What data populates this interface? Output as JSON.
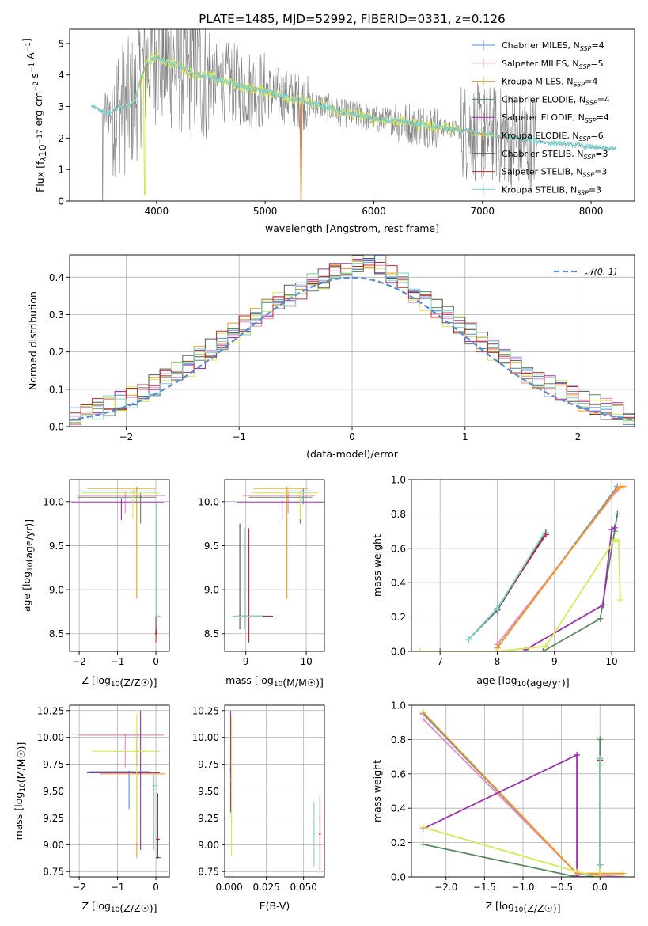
{
  "colors": {
    "Chabrier MILES": "#5B8BD4",
    "Salpeter MILES": "#E88AC0",
    "Kroupa MILES": "#F39C12",
    "Chabrier ELODIE": "#5A8A60",
    "Salpeter ELODIE": "#9B30B0",
    "Kroupa ELODIE": "#D4EA50",
    "Chabrier STELIB": "#555555",
    "Salpeter STELIB": "#C0282B",
    "Kroupa STELIB": "#7AD4D4",
    "data": "#808080",
    "orange_model": "#E07B39",
    "normal": "#5B8BD4"
  },
  "chart_data": [
    {
      "id": "spectrum",
      "type": "line",
      "title": "PLATE=1485, MJD=52992, FIBERID=0331, z=0.126",
      "xlabel": "wavelength [Angstrom, rest frame]",
      "ylabel": "Flux [f_λ10^-17 erg cm^-2 s^-1 A^-1]",
      "xlim": [
        3200,
        8400
      ],
      "ylim": [
        0,
        5.45
      ],
      "xticks": [
        "4000",
        "5000",
        "6000",
        "7000",
        "8000"
      ],
      "yticks": [
        "0",
        "1",
        "2",
        "3",
        "4",
        "5"
      ],
      "grid": false,
      "legend_position": "top-right",
      "legend": [
        {
          "name": "Chabrier MILES",
          "nssp": "4"
        },
        {
          "name": "Salpeter MILES",
          "nssp": "5"
        },
        {
          "name": "Kroupa MILES",
          "nssp": "4"
        },
        {
          "name": "Chabrier ELODIE",
          "nssp": "4"
        },
        {
          "name": "Salpeter ELODIE",
          "nssp": "4"
        },
        {
          "name": "Kroupa ELODIE",
          "nssp": "6"
        },
        {
          "name": "Chabrier STELIB",
          "nssp": "3"
        },
        {
          "name": "Salpeter STELIB",
          "nssp": "3"
        },
        {
          "name": "Kroupa STELIB",
          "nssp": "3"
        }
      ],
      "legend_prefix": "N",
      "legend_sub": "SSP",
      "model_continuum": [
        [
          3400,
          3.0
        ],
        [
          3450,
          2.95
        ],
        [
          3500,
          2.85
        ],
        [
          3550,
          2.8
        ],
        [
          3600,
          2.9
        ],
        [
          3650,
          3.0
        ],
        [
          3700,
          2.95
        ],
        [
          3750,
          3.05
        ],
        [
          3800,
          3.2
        ],
        [
          3850,
          3.8
        ],
        [
          3900,
          4.3
        ],
        [
          3950,
          4.5
        ],
        [
          4000,
          4.6
        ],
        [
          4100,
          4.4
        ],
        [
          4200,
          4.3
        ],
        [
          4300,
          4.1
        ],
        [
          4400,
          4.0
        ],
        [
          4500,
          3.95
        ],
        [
          4600,
          3.8
        ],
        [
          4700,
          3.75
        ],
        [
          4800,
          3.6
        ],
        [
          4900,
          3.55
        ],
        [
          5000,
          3.5
        ],
        [
          5100,
          3.4
        ],
        [
          5200,
          3.3
        ],
        [
          5300,
          3.2
        ],
        [
          5400,
          3.1
        ],
        [
          5500,
          3.05
        ],
        [
          5600,
          2.95
        ],
        [
          5700,
          2.8
        ],
        [
          5800,
          2.75
        ],
        [
          5900,
          2.7
        ],
        [
          6000,
          2.6
        ],
        [
          6100,
          2.55
        ],
        [
          6200,
          2.55
        ],
        [
          6300,
          2.5
        ],
        [
          6400,
          2.45
        ],
        [
          6500,
          2.4
        ],
        [
          6600,
          2.35
        ],
        [
          6700,
          2.3
        ],
        [
          6800,
          2.25
        ],
        [
          6900,
          2.2
        ],
        [
          7000,
          2.15
        ],
        [
          7200,
          2.05
        ],
        [
          7400,
          1.95
        ],
        [
          7600,
          1.85
        ],
        [
          7800,
          1.8
        ],
        [
          8000,
          1.72
        ],
        [
          8200,
          1.65
        ]
      ]
    },
    {
      "id": "residuals",
      "type": "histogram",
      "xlabel": "(data-model)/error",
      "ylabel": "Normed distribution",
      "xlim": [
        -2.5,
        2.5
      ],
      "ylim": [
        0,
        0.46
      ],
      "xticks": [
        "-2",
        "-1",
        "0",
        "1",
        "2"
      ],
      "yticks": [
        "0.0",
        "0.1",
        "0.2",
        "0.3",
        "0.4"
      ],
      "grid": true,
      "legend_position": "top-right",
      "legend_label": "N(0,1)",
      "bin_width": 0.1
    },
    {
      "id": "age_vs_Z",
      "type": "errorbar",
      "xlabel": "Z [log10(Z/Z☉)]",
      "ylabel": "age [log10(age/yr)]",
      "xlim": [
        -2.25,
        0.35
      ],
      "ylim": [
        8.3,
        10.25
      ],
      "xticks": [
        "-2",
        "-1",
        "0"
      ],
      "yticks": [
        "8.5",
        "9.0",
        "9.5",
        "10.0"
      ],
      "grid": true,
      "points": [
        {
          "series": "Chabrier MILES",
          "x": -0.55,
          "y": 10.12,
          "xerr": [
            1.5,
            0.55
          ],
          "yerr": [
            0.15,
            0.04
          ]
        },
        {
          "series": "Salpeter MILES",
          "x": -0.8,
          "y": 10.07,
          "xerr": [
            1.25,
            1.05
          ],
          "yerr": [
            0.2,
            0.05
          ]
        },
        {
          "series": "Kroupa MILES",
          "x": -0.5,
          "y": 10.15,
          "xerr": [
            1.3,
            0.5
          ],
          "yerr": [
            1.25,
            0.02
          ]
        },
        {
          "series": "Chabrier ELODIE",
          "x": -0.4,
          "y": 10.05,
          "xerr": [
            1.65,
            0.4
          ],
          "yerr": [
            0.3,
            0.05
          ]
        },
        {
          "series": "Salpeter ELODIE",
          "x": -0.9,
          "y": 9.99,
          "xerr": [
            1.3,
            1.1
          ],
          "yerr": [
            0.2,
            0.05
          ]
        },
        {
          "series": "Kroupa ELODIE",
          "x": -0.6,
          "y": 10.1,
          "xerr": [
            1.35,
            0.7
          ],
          "yerr": [
            0.3,
            0.03
          ]
        },
        {
          "series": "Chabrier STELIB",
          "x": 0.02,
          "y": 8.7,
          "xerr": [
            0.02,
            0.05
          ],
          "yerr": [
            0.2,
            1.05
          ]
        },
        {
          "series": "Salpeter STELIB",
          "x": 0.0,
          "y": 8.5,
          "xerr": [
            0.02,
            0.02
          ],
          "yerr": [
            0.1,
            0.2
          ]
        },
        {
          "series": "Kroupa STELIB",
          "x": 0.02,
          "y": 8.7,
          "xerr": [
            0.04,
            0.1
          ],
          "yerr": [
            0.15,
            1.3
          ]
        }
      ]
    },
    {
      "id": "age_vs_mass",
      "type": "errorbar",
      "xlabel": "mass [log10(M/M☉)]",
      "ylabel": "",
      "xlim": [
        8.65,
        10.3
      ],
      "ylim": [
        8.3,
        10.25
      ],
      "xticks": [
        "9",
        "10"
      ],
      "yticks": [
        "8.5",
        "9.0",
        "9.5",
        "10.0"
      ],
      "grid": true,
      "points": [
        {
          "series": "Chabrier MILES",
          "x": 9.95,
          "y": 10.12,
          "xerr": [
            0.3,
            0.15
          ],
          "yerr": [
            0.15,
            0.04
          ]
        },
        {
          "series": "Salpeter MILES",
          "x": 9.7,
          "y": 10.07,
          "xerr": [
            0.75,
            0.45
          ],
          "yerr": [
            0.2,
            0.05
          ]
        },
        {
          "series": "Kroupa MILES",
          "x": 9.68,
          "y": 10.15,
          "xerr": [
            0.55,
            0.35
          ],
          "yerr": [
            1.25,
            0.02
          ]
        },
        {
          "series": "Chabrier ELODIE",
          "x": 9.9,
          "y": 10.05,
          "xerr": [
            0.85,
            0.2
          ],
          "yerr": [
            0.3,
            0.05
          ]
        },
        {
          "series": "Salpeter ELODIE",
          "x": 9.6,
          "y": 9.99,
          "xerr": [
            0.75,
            0.7
          ],
          "yerr": [
            0.2,
            0.05
          ]
        },
        {
          "series": "Kroupa ELODIE",
          "x": 9.9,
          "y": 10.1,
          "xerr": [
            0.8,
            0.3
          ],
          "yerr": [
            0.3,
            0.03
          ]
        },
        {
          "series": "Chabrier STELIB",
          "x": 8.9,
          "y": 8.7,
          "xerr": [
            0.05,
            0.4
          ],
          "yerr": [
            0.15,
            1.05
          ]
        },
        {
          "series": "Salpeter STELIB",
          "x": 9.05,
          "y": 8.7,
          "xerr": [
            0.15,
            0.4
          ],
          "yerr": [
            0.3,
            1.0
          ]
        },
        {
          "series": "Kroupa STELIB",
          "x": 8.98,
          "y": 8.7,
          "xerr": [
            0.2,
            0.3
          ],
          "yerr": [
            0.15,
            1.0
          ]
        }
      ]
    },
    {
      "id": "massweight_vs_age",
      "type": "line",
      "xlabel": "age [log10(age/yr)]",
      "ylabel": "mass weight",
      "xlim": [
        6.5,
        10.4
      ],
      "ylim": [
        0,
        1.0
      ],
      "xticks": [
        "7",
        "8",
        "9",
        "10"
      ],
      "yticks": [
        "0.0",
        "0.2",
        "0.4",
        "0.6",
        "0.8",
        "1.0"
      ],
      "grid": true,
      "series": [
        {
          "name": "Chabrier MILES",
          "x": [
            8.0,
            10.1
          ],
          "y": [
            0.02,
            0.96
          ]
        },
        {
          "name": "Salpeter MILES",
          "x": [
            8.0,
            10.1,
            10.15
          ],
          "y": [
            0.04,
            0.94,
            0.96
          ]
        },
        {
          "name": "Kroupa MILES",
          "x": [
            8.0,
            10.1,
            10.2
          ],
          "y": [
            0.02,
            0.95,
            0.96
          ]
        },
        {
          "name": "Chabrier ELODIE",
          "x": [
            7.0,
            8.8,
            9.8,
            10.05,
            10.1
          ],
          "y": [
            0.0,
            0.0,
            0.19,
            0.7,
            0.8
          ]
        },
        {
          "name": "Salpeter ELODIE",
          "x": [
            8.5,
            9.85,
            10.0,
            10.05
          ],
          "y": [
            0.01,
            0.27,
            0.71,
            0.72
          ]
        },
        {
          "name": "Kroupa ELODIE",
          "x": [
            6.65,
            8.0,
            8.85,
            10.05,
            10.12,
            10.15
          ],
          "y": [
            0.0,
            0.0,
            0.03,
            0.65,
            0.64,
            0.3
          ]
        },
        {
          "name": "Chabrier STELIB",
          "x": [
            7.5,
            8.0,
            8.85
          ],
          "y": [
            0.07,
            0.24,
            0.69
          ]
        },
        {
          "name": "Salpeter STELIB",
          "x": [
            7.5,
            8.0,
            8.85
          ],
          "y": [
            0.07,
            0.25,
            0.68
          ]
        },
        {
          "name": "Kroupa STELIB",
          "x": [
            7.5,
            8.0,
            8.82
          ],
          "y": [
            0.07,
            0.25,
            0.69
          ]
        }
      ]
    },
    {
      "id": "mass_vs_Z",
      "type": "errorbar",
      "xlabel": "Z [log10(Z/Z☉)]",
      "ylabel": "mass [log10(M/M☉)]",
      "xlim": [
        -2.25,
        0.35
      ],
      "ylim": [
        8.7,
        10.3
      ],
      "xticks": [
        "-2",
        "-1",
        "0"
      ],
      "yticks": [
        "8.75",
        "9.00",
        "9.25",
        "9.50",
        "9.75",
        "10.00",
        "10.25"
      ],
      "grid": true,
      "points": [
        {
          "series": "Chabrier MILES",
          "x": -0.7,
          "y": 9.68,
          "xerr": [
            1.05,
            0.55
          ],
          "yerr": [
            0.35,
            0.0
          ]
        },
        {
          "series": "Salpeter MILES",
          "x": -0.8,
          "y": 10.02,
          "xerr": [
            1.2,
            1.0
          ],
          "yerr": [
            0.3,
            0.0
          ]
        },
        {
          "series": "Kroupa MILES",
          "x": -0.5,
          "y": 9.66,
          "xerr": [
            0.95,
            0.75
          ],
          "yerr": [
            0.78,
            0.0
          ]
        },
        {
          "series": "Chabrier ELODIE",
          "x": -0.5,
          "y": 10.03,
          "xerr": [
            1.7,
            0.75
          ],
          "yerr": [
            0.3,
            0.0
          ]
        },
        {
          "series": "Salpeter ELODIE",
          "x": -0.4,
          "y": 9.67,
          "xerr": [
            1.4,
            0.5
          ],
          "yerr": [
            0.72,
            0.58
          ]
        },
        {
          "series": "Kroupa ELODIE",
          "x": -0.5,
          "y": 9.87,
          "xerr": [
            1.15,
            0.6
          ],
          "yerr": [
            0.85,
            0.35
          ]
        },
        {
          "series": "Chabrier STELIB",
          "x": 0.05,
          "y": 8.88,
          "xerr": [
            0.05,
            0.07
          ],
          "yerr": [
            0.0,
            0.6
          ]
        },
        {
          "series": "Salpeter STELIB",
          "x": 0.05,
          "y": 9.05,
          "xerr": [
            0.05,
            0.05
          ],
          "yerr": [
            0.0,
            0.4
          ]
        },
        {
          "series": "Kroupa STELIB",
          "x": -0.05,
          "y": 9.55,
          "xerr": [
            0.05,
            0.1
          ],
          "yerr": [
            0.6,
            0.1
          ]
        }
      ]
    },
    {
      "id": "mass_vs_EBV",
      "type": "errorbar",
      "xlabel": "E(B-V)",
      "ylabel": "",
      "xlim": [
        -0.003,
        0.064
      ],
      "ylim": [
        8.7,
        10.3
      ],
      "xticks": [
        "0.000",
        "0.025",
        "0.050"
      ],
      "yticks": [
        "8.75",
        "9.00",
        "9.25",
        "9.50",
        "9.75",
        "10.00",
        "10.25"
      ],
      "grid": true,
      "points": [
        {
          "series": "Salpeter ELODIE",
          "x": 0.001,
          "y": 9.7,
          "xerr": [
            0.0,
            0.0
          ],
          "yerr": [
            0.4,
            0.55
          ]
        },
        {
          "series": "Kroupa ELODIE",
          "x": 0.0015,
          "y": 9.6,
          "xerr": [
            0.0,
            0.0
          ],
          "yerr": [
            0.7,
            0.6
          ]
        },
        {
          "series": "Kroupa STELIB",
          "x": 0.057,
          "y": 9.1,
          "xerr": [
            0.0,
            0.0
          ],
          "yerr": [
            0.3,
            0.3
          ]
        },
        {
          "series": "Salpeter STELIB",
          "x": 0.061,
          "y": 9.1,
          "xerr": [
            0.0,
            0.0
          ],
          "yerr": [
            0.35,
            0.35
          ]
        }
      ]
    },
    {
      "id": "massweight_vs_Z",
      "type": "line",
      "xlabel": "Z [log10(Z/Z☉)]",
      "ylabel": "mass weight",
      "xlim": [
        -2.45,
        0.45
      ],
      "ylim": [
        0,
        1.0
      ],
      "xticks": [
        "-2.0",
        "-1.5",
        "-1.0",
        "-0.5",
        "0.0"
      ],
      "yticks": [
        "0.0",
        "0.2",
        "0.4",
        "0.6",
        "0.8",
        "1.0"
      ],
      "grid": true,
      "series": [
        {
          "name": "Chabrier MILES",
          "x": [
            -2.3,
            -0.3,
            0.0
          ],
          "y": [
            0.95,
            0.02,
            0.0
          ]
        },
        {
          "name": "Salpeter MILES",
          "x": [
            -2.3,
            -0.3,
            0.3
          ],
          "y": [
            0.92,
            0.02,
            0.0
          ]
        },
        {
          "name": "Kroupa MILES",
          "x": [
            -2.3,
            -0.3,
            0.3
          ],
          "y": [
            0.96,
            0.02,
            0.02
          ]
        },
        {
          "name": "Chabrier ELODIE",
          "x": [
            -2.3,
            -0.3,
            0.0,
            0.0
          ],
          "y": [
            0.19,
            0.0,
            0.0,
            0.8
          ]
        },
        {
          "name": "Salpeter ELODIE",
          "x": [
            -2.3,
            -0.3,
            -0.3
          ],
          "y": [
            0.28,
            0.71,
            0.01
          ]
        },
        {
          "name": "Kroupa ELODIE",
          "x": [
            -2.3,
            -0.3,
            0.0,
            0.0
          ],
          "y": [
            0.29,
            0.03,
            0.0,
            0.65
          ]
        },
        {
          "name": "Chabrier STELIB",
          "x": [
            0.0,
            0.0
          ],
          "y": [
            0.07,
            0.69
          ]
        },
        {
          "name": "Salpeter STELIB",
          "x": [
            0.0,
            0.0
          ],
          "y": [
            0.07,
            0.68
          ]
        },
        {
          "name": "Kroupa STELIB",
          "x": [
            0.0,
            0.0
          ],
          "y": [
            0.07,
            0.69
          ]
        }
      ]
    }
  ]
}
